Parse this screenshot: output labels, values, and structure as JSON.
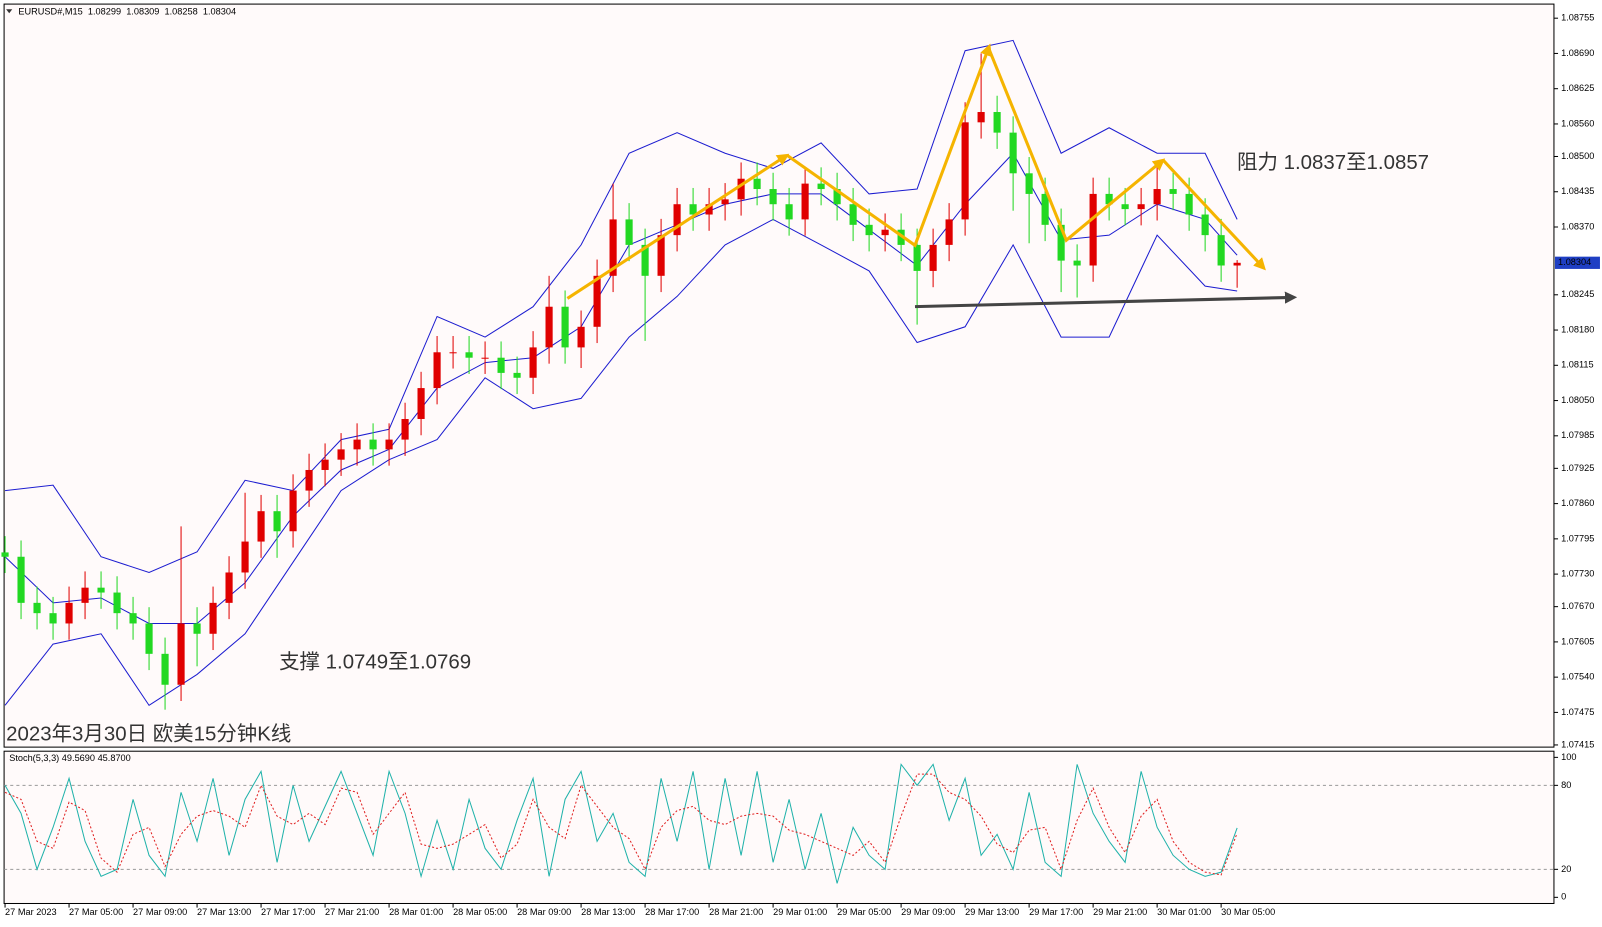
{
  "chart_data": [
    {
      "type": "candlestick",
      "symbol": "EURUSD#,M15",
      "title": "2023年3月30日 欧美15分钟K线",
      "annotations": [
        "阻力 1.0837至1.0857",
        "支撑 1.0749至1.0769"
      ],
      "up_color": "#e00000",
      "down_color": "#22d822",
      "x": [
        1,
        2,
        3,
        4,
        5,
        6,
        7,
        8,
        9,
        10,
        11,
        12,
        13,
        14,
        15,
        16,
        17,
        18,
        19,
        20,
        21,
        22,
        23,
        24,
        25,
        26,
        27,
        28,
        29,
        30,
        31,
        32,
        33,
        34,
        35,
        36,
        37,
        38,
        39,
        40,
        41,
        42,
        43,
        44,
        45,
        46,
        47,
        48,
        49,
        50,
        51,
        52,
        53,
        54,
        55,
        56,
        57,
        58,
        59,
        60,
        61,
        62,
        63,
        64,
        65,
        66,
        67,
        68,
        69,
        70,
        71,
        72,
        73,
        74,
        75,
        76,
        77,
        78
      ],
      "open": [
        1.0777,
        1.07762,
        1.07677,
        1.07658,
        1.07639,
        1.07677,
        1.07705,
        1.07696,
        1.07658,
        1.07639,
        1.07583,
        1.07526,
        1.07639,
        1.0762,
        1.07677,
        1.07733,
        1.0779,
        1.07846,
        1.07809,
        1.07884,
        1.07922,
        1.07941,
        1.0796,
        1.07978,
        1.0796,
        1.07978,
        1.08016,
        1.08073,
        1.08139,
        1.08139,
        1.08129,
        1.08129,
        1.08101,
        1.08092,
        1.08148,
        1.08223,
        1.08148,
        1.08186,
        1.0828,
        1.08384,
        1.08337,
        1.0828,
        1.08355,
        1.08412,
        1.08393,
        1.08412,
        1.08421,
        1.08459,
        1.0844,
        1.08412,
        1.08384,
        1.0845,
        1.0844,
        1.08412,
        1.08374,
        1.08355,
        1.08365,
        1.08337,
        1.08289,
        1.08337,
        1.08384,
        1.08563,
        1.08582,
        1.08544,
        1.08469,
        1.08431,
        1.08374,
        1.08308,
        1.08299,
        1.08431,
        1.08412,
        1.08403,
        1.08412,
        1.0844,
        1.08431,
        1.08393,
        1.08355,
        1.08299
      ],
      "high": [
        1.078,
        1.07792,
        1.07707,
        1.07688,
        1.07707,
        1.07735,
        1.07735,
        1.07726,
        1.07688,
        1.07669,
        1.07613,
        1.07818,
        1.07669,
        1.07707,
        1.07763,
        1.0788,
        1.07876,
        1.07876,
        1.07914,
        1.07952,
        1.07971,
        1.0799,
        1.08008,
        1.08008,
        1.08008,
        1.08046,
        1.08103,
        1.08169,
        1.08169,
        1.08169,
        1.08159,
        1.08159,
        1.08131,
        1.08178,
        1.0828,
        1.08253,
        1.08216,
        1.0831,
        1.0845,
        1.08414,
        1.08367,
        1.08385,
        1.08442,
        1.08442,
        1.08442,
        1.08451,
        1.08489,
        1.08489,
        1.0847,
        1.08442,
        1.0848,
        1.0848,
        1.0847,
        1.08442,
        1.08404,
        1.08395,
        1.08395,
        1.08367,
        1.08367,
        1.08414,
        1.086,
        1.0869,
        1.08612,
        1.08574,
        1.08499,
        1.08461,
        1.08404,
        1.08338,
        1.08461,
        1.08461,
        1.08442,
        1.08442,
        1.0848,
        1.0847,
        1.08461,
        1.08423,
        1.08385,
        1.08309
      ],
      "low": [
        1.07732,
        1.07647,
        1.07628,
        1.07609,
        1.07609,
        1.07647,
        1.07666,
        1.07628,
        1.07609,
        1.07553,
        1.0748,
        1.07496,
        1.0756,
        1.0759,
        1.07647,
        1.07703,
        1.0776,
        1.0776,
        1.07779,
        1.07854,
        1.07892,
        1.07911,
        1.0793,
        1.0793,
        1.0793,
        1.07948,
        1.07986,
        1.08043,
        1.08109,
        1.08099,
        1.08099,
        1.08071,
        1.08062,
        1.08062,
        1.08118,
        1.08118,
        1.0811,
        1.08156,
        1.0825,
        1.08307,
        1.0816,
        1.0825,
        1.08325,
        1.08363,
        1.08363,
        1.08382,
        1.08391,
        1.0841,
        1.08382,
        1.08354,
        1.08354,
        1.0841,
        1.08382,
        1.08344,
        1.08325,
        1.08325,
        1.08307,
        1.0819,
        1.08259,
        1.08307,
        1.08354,
        1.08533,
        1.08514,
        1.084,
        1.0834,
        1.08344,
        1.0825,
        1.0824,
        1.08269,
        1.08382,
        1.08373,
        1.08373,
        1.08382,
        1.08401,
        1.08363,
        1.08325,
        1.08269,
        1.08258
      ],
      "close": [
        1.07762,
        1.07677,
        1.07658,
        1.07639,
        1.07677,
        1.07705,
        1.07696,
        1.07658,
        1.07639,
        1.07583,
        1.07526,
        1.07639,
        1.0762,
        1.07677,
        1.07733,
        1.0779,
        1.07846,
        1.07809,
        1.07884,
        1.07922,
        1.07941,
        1.0796,
        1.07978,
        1.0796,
        1.07978,
        1.08016,
        1.08073,
        1.08139,
        1.08139,
        1.08129,
        1.08129,
        1.08101,
        1.08092,
        1.08148,
        1.08223,
        1.08148,
        1.08186,
        1.0828,
        1.08384,
        1.08337,
        1.0828,
        1.08355,
        1.08412,
        1.08393,
        1.08412,
        1.08421,
        1.08459,
        1.0844,
        1.08412,
        1.08384,
        1.0845,
        1.0844,
        1.08412,
        1.08374,
        1.08355,
        1.08365,
        1.08337,
        1.08289,
        1.08337,
        1.08384,
        1.08563,
        1.08582,
        1.08544,
        1.08469,
        1.08431,
        1.08374,
        1.08308,
        1.08299,
        1.08431,
        1.08412,
        1.08403,
        1.08412,
        1.0844,
        1.08431,
        1.08393,
        1.08355,
        1.08299,
        1.08304
      ],
      "series": [
        {
          "color": "#1c1cd0",
          "x": [
            1,
            4,
            7,
            10,
            13,
            16,
            19,
            22,
            25,
            28,
            31,
            34,
            37,
            40,
            43,
            46,
            49,
            52,
            55,
            58,
            61,
            64,
            67,
            70,
            73,
            76,
            78
          ],
          "values": [
            1.07884,
            1.07894,
            1.07762,
            1.07733,
            1.07771,
            1.07903,
            1.07884,
            1.07978,
            1.07997,
            1.08205,
            1.08167,
            1.08223,
            1.08337,
            1.08506,
            1.08544,
            1.08506,
            1.08478,
            1.08525,
            1.08431,
            1.0844,
            1.08695,
            1.08714,
            1.08506,
            1.08553,
            1.08506,
            1.08506,
            1.08384
          ]
        },
        {
          "color": "#1c1cd0",
          "x": [
            1,
            4,
            7,
            10,
            13,
            16,
            19,
            22,
            25,
            28,
            31,
            34,
            37,
            40,
            43,
            46,
            49,
            52,
            55,
            58,
            61,
            64,
            67,
            70,
            73,
            76,
            78
          ],
          "values": [
            1.07762,
            1.07677,
            1.07686,
            1.07639,
            1.07639,
            1.07714,
            1.07837,
            1.07922,
            1.0796,
            1.08073,
            1.0812,
            1.08129,
            1.08186,
            1.08337,
            1.08374,
            1.08412,
            1.08431,
            1.08431,
            1.08365,
            1.08299,
            1.08412,
            1.08506,
            1.08346,
            1.08355,
            1.08412,
            1.08384,
            1.08318
          ]
        },
        {
          "color": "#1c1cd0",
          "x": [
            1,
            4,
            7,
            10,
            13,
            16,
            19,
            22,
            25,
            28,
            31,
            34,
            37,
            40,
            43,
            46,
            49,
            52,
            55,
            58,
            61,
            64,
            67,
            70,
            73,
            76,
            78
          ],
          "values": [
            1.07488,
            1.07601,
            1.0762,
            1.07488,
            1.07545,
            1.0762,
            1.07752,
            1.07884,
            1.07941,
            1.07978,
            1.08092,
            1.08035,
            1.08054,
            1.08167,
            1.08242,
            1.08337,
            1.08384,
            1.08337,
            1.08289,
            1.08157,
            1.08186,
            1.08337,
            1.08167,
            1.08167,
            1.08355,
            1.08261,
            1.08252
          ]
        }
      ],
      "xlim": [
        0.94,
        97.8
      ],
      "xticks": [
        {
          "value": 1,
          "label": "27 Mar 2023"
        },
        {
          "value": 5,
          "label": "27 Mar 05:00"
        },
        {
          "value": 9,
          "label": "27 Mar 09:00"
        },
        {
          "value": 13,
          "label": "27 Mar 13:00"
        },
        {
          "value": 17,
          "label": "27 Mar 17:00"
        },
        {
          "value": 21,
          "label": "27 Mar 21:00"
        },
        {
          "value": 25,
          "label": "28 Mar 01:00"
        },
        {
          "value": 29,
          "label": "28 Mar 05:00"
        },
        {
          "value": 33,
          "label": "28 Mar 09:00"
        },
        {
          "value": 37,
          "label": "28 Mar 13:00"
        },
        {
          "value": 41,
          "label": "28 Mar 17:00"
        },
        {
          "value": 45,
          "label": "28 Mar 21:00"
        },
        {
          "value": 49,
          "label": "29 Mar 01:00"
        },
        {
          "value": 53,
          "label": "29 Mar 05:00"
        },
        {
          "value": 57,
          "label": "29 Mar 09:00"
        },
        {
          "value": 61,
          "label": "29 Mar 13:00"
        },
        {
          "value": 65,
          "label": "29 Mar 17:00"
        },
        {
          "value": 69,
          "label": "29 Mar 21:00"
        },
        {
          "value": 73,
          "label": "30 Mar 01:00"
        },
        {
          "value": 77,
          "label": "30 Mar 05:00"
        }
      ],
      "ylim": [
        1.07411,
        1.08781
      ],
      "yticks": [
        1.08755,
        {
          "value": 1.0869,
          "label": "1.08690"
        },
        1.08625,
        {
          "value": 1.0856,
          "label": "1.08560"
        },
        {
          "value": 1.085,
          "label": "1.08500"
        },
        1.08435,
        {
          "value": 1.0837,
          "label": "1.08370"
        },
        1.08245,
        {
          "value": 1.0818,
          "label": "1.08180"
        },
        1.08115,
        {
          "value": 1.0805,
          "label": "1.08050"
        },
        1.07985,
        1.07925,
        {
          "value": 1.0786,
          "label": "1.07860"
        },
        1.07795,
        {
          "value": 1.0773,
          "label": "1.07730"
        },
        {
          "value": 1.0767,
          "label": "1.07670"
        },
        1.07605,
        {
          "value": 1.0754,
          "label": "1.07540"
        },
        1.07475,
        1.07415
      ],
      "price_label_color": "#1f3fc4"
    },
    {
      "type": "line",
      "title": "Stoch(5,3,3) 49.5690 45.8700",
      "series": [
        {
          "color": "#20b2aa",
          "dash": false,
          "values": [
            80,
            60,
            20,
            50,
            85,
            40,
            15,
            20,
            70,
            30,
            15,
            75,
            40,
            85,
            30,
            70,
            90,
            25,
            80,
            40,
            65,
            90,
            60,
            30,
            90,
            60,
            15,
            55,
            20,
            70,
            35,
            20,
            55,
            85,
            15,
            70,
            90,
            40,
            60,
            25,
            15,
            85,
            40,
            90,
            20,
            85,
            30,
            90,
            25,
            70,
            20,
            60,
            10,
            50,
            30,
            20,
            95,
            80,
            95,
            55,
            85,
            30,
            45,
            20,
            75,
            25,
            15,
            95,
            60,
            40,
            25,
            90,
            50,
            30,
            20,
            15,
            18,
            49.569
          ]
        },
        {
          "color": "#e02020",
          "dash": true,
          "values": [
            75,
            70,
            40,
            35,
            68,
            62,
            28,
            18,
            45,
            50,
            22,
            45,
            58,
            62,
            58,
            50,
            80,
            58,
            52,
            60,
            52,
            78,
            75,
            45,
            60,
            75,
            38,
            35,
            38,
            45,
            52,
            28,
            38,
            70,
            50,
            42,
            80,
            65,
            50,
            42,
            20,
            50,
            62,
            65,
            55,
            52,
            58,
            60,
            58,
            48,
            45,
            40,
            35,
            30,
            40,
            25,
            58,
            88,
            88,
            75,
            70,
            58,
            38,
            32,
            48,
            50,
            20,
            55,
            78,
            50,
            32,
            58,
            70,
            40,
            25,
            18,
            16,
            45.87
          ]
        }
      ],
      "ylim": [
        -4.4,
        104.4
      ],
      "yticks": [
        0,
        20,
        80,
        100
      ],
      "levels": [
        20,
        80
      ]
    }
  ]
}
